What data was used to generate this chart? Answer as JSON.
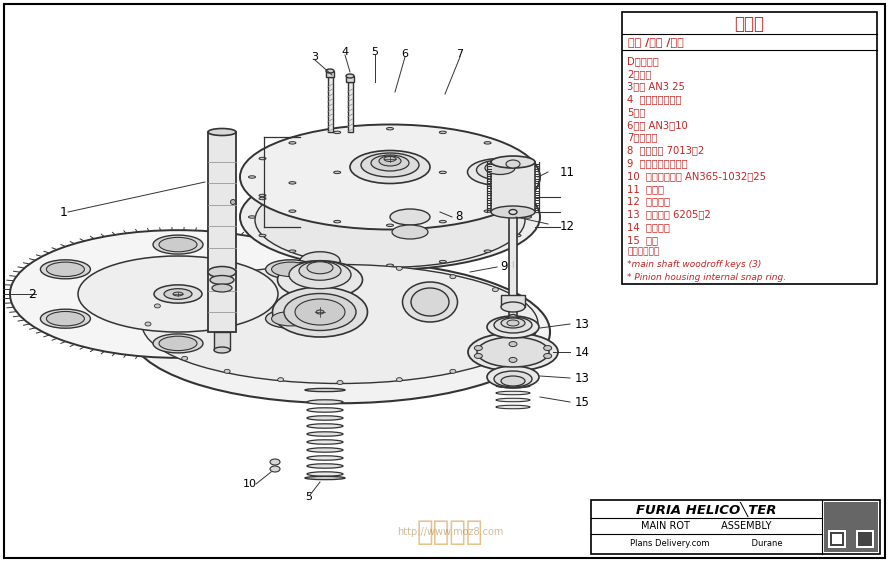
{
  "bg_color": "#ffffff",
  "border_color": "#000000",
  "title": "部件表",
  "subtitle": "编号 /名称 /数量",
  "parts": [
    "D主旋翼轴",
    "2主齿轮",
    "3螺钉 AN3 25",
    "4  变速箱体上部分",
    "5垫圈",
    "6螺钉 AN3（10",
    "7变速箱盖",
    "8  滚珠轴承 7013（2",
    "9  变速箱体下半部分",
    "10  弹性防松螺母 AN365-1032（25",
    "11  小齿轮",
    "12  小齿轮轴",
    "13  滚珠轴承 6205（2",
    "14  齿轮机座",
    "15  垫圈",
    "未展示部分：",
    "*main shaft woodroff keys (3)",
    "* Pinion housing internal snap ring."
  ],
  "footer_title": "FURIA HELICO╲TER",
  "footer_sub1": "MAIN ROT          ASSEMBLY",
  "footer_sub2": "Plans Delivery.com              Durane",
  "title_color": "#cc2222",
  "parts_color": "#cc2222",
  "line_color": "#333333",
  "lc_thin": "#555555"
}
